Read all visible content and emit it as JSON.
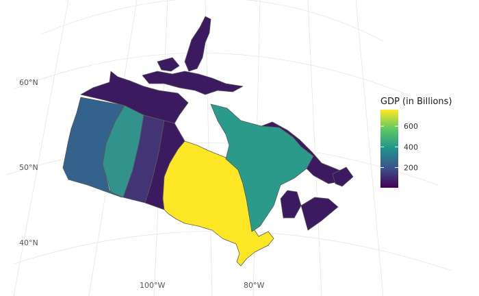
{
  "axis_labels": {
    "lat_60": "60°N",
    "lat_50": "50°N",
    "lat_40": "40°N",
    "lon_100": "100°W",
    "lon_80": "80°W"
  },
  "legend": {
    "title": "GDP (in Billions)",
    "ticks": [
      {
        "label": "600",
        "value": 600
      },
      {
        "label": "400",
        "value": 400
      },
      {
        "label": "200",
        "value": 200
      }
    ],
    "range": [
      5,
      760
    ],
    "colors": [
      "#440154",
      "#3b528b",
      "#21918c",
      "#5ec962",
      "#fde725"
    ]
  },
  "map_colors": {
    "grid": "#e6e6e6",
    "border": "#5a5a5a",
    "ontario": "#fde725",
    "quebec": "#2a9b8a",
    "alberta": "#31938c",
    "british_columbia": "#33628c",
    "low_gdp": "#3c1a60",
    "mid_low_gdp": "#433476"
  },
  "regions": [
    {
      "name": "Yukon / Northern Territories"
    },
    {
      "name": "British Columbia"
    },
    {
      "name": "Alberta"
    },
    {
      "name": "Saskatchewan"
    },
    {
      "name": "Manitoba"
    },
    {
      "name": "Ontario"
    },
    {
      "name": "Quebec"
    },
    {
      "name": "Atlantic Provinces"
    },
    {
      "name": "Arctic Islands"
    }
  ]
}
